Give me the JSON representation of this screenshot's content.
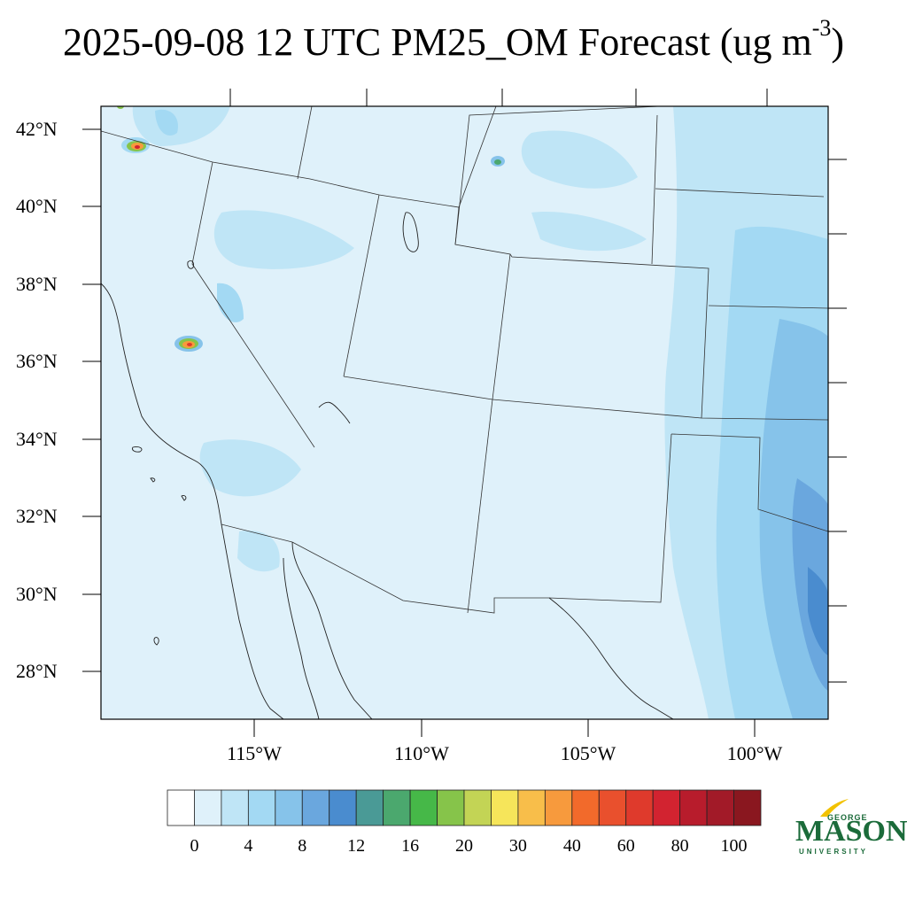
{
  "title": {
    "main": "2025-09-08 12 UTC PM25_OM Forecast (ug m",
    "exponent": "-3",
    "close": ")"
  },
  "map": {
    "lat_labels": [
      "42°N",
      "40°N",
      "38°N",
      "36°N",
      "34°N",
      "32°N",
      "30°N",
      "28°N"
    ],
    "lon_labels": [
      "115°W",
      "110°W",
      "105°W",
      "100°W"
    ],
    "background_color": "#dff1fa"
  },
  "colorbar": {
    "colors": [
      "#ffffff",
      "#dff1fa",
      "#bfe5f6",
      "#a3d9f3",
      "#86c3ea",
      "#6aa7de",
      "#4a8ccf",
      "#4a9a96",
      "#4ba86e",
      "#46b848",
      "#86c44a",
      "#c3d455",
      "#f6e55a",
      "#f8be4a",
      "#f79a3d",
      "#f26a2b",
      "#e9502d",
      "#df3a2c",
      "#d22330",
      "#b81c2c",
      "#a21a28",
      "#8a171f"
    ],
    "labels": [
      "0",
      "4",
      "8",
      "12",
      "16",
      "20",
      "30",
      "40",
      "60",
      "80",
      "100"
    ]
  },
  "logo": {
    "george": "GEORGE",
    "mason": "MASON",
    "university": "UNIVERSITY",
    "color": "#1b6b3a",
    "accent": "#f2c200"
  }
}
